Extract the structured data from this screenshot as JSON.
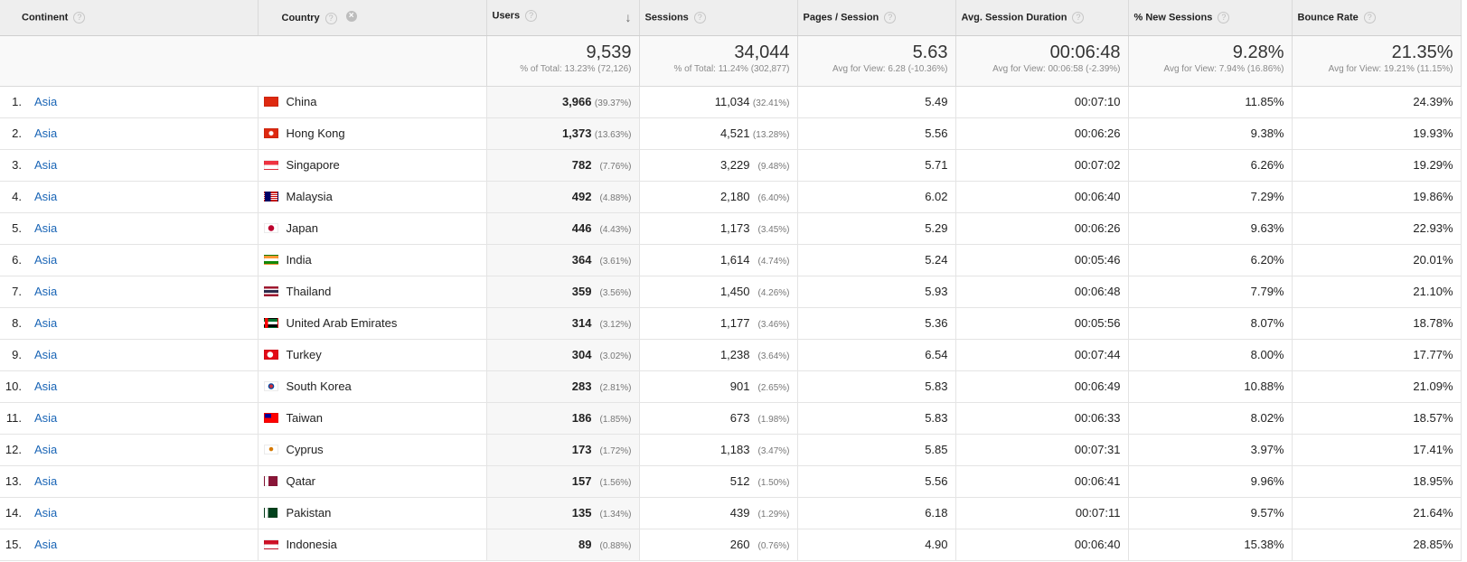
{
  "headers": {
    "continent": "Continent",
    "country": "Country",
    "users": "Users",
    "sessions": "Sessions",
    "pages_per_session": "Pages / Session",
    "avg_duration": "Avg. Session Duration",
    "new_sessions": "% New Sessions",
    "bounce_rate": "Bounce Rate",
    "help_glyph": "?",
    "remove_glyph": "×",
    "sort_glyph": "↓"
  },
  "totals": {
    "users": {
      "value": "9,539",
      "sub": "% of Total: 13.23% (72,126)"
    },
    "sessions": {
      "value": "34,044",
      "sub": "% of Total: 11.24% (302,877)"
    },
    "pages_per_session": {
      "value": "5.63",
      "sub": "Avg for View: 6.28 (-10.36%)"
    },
    "avg_duration": {
      "value": "00:06:48",
      "sub": "Avg for View: 00:06:58 (-2.39%)"
    },
    "new_sessions": {
      "value": "9.28%",
      "sub": "Avg for View: 7.94% (16.86%)"
    },
    "bounce_rate": {
      "value": "21.35%",
      "sub": "Avg for View: 19.21% (11.15%)"
    }
  },
  "rows": [
    {
      "rank": "1.",
      "continent": "Asia",
      "country": "China",
      "flag": "CN",
      "users": "3,966",
      "users_pct": "(39.37%)",
      "sessions": "11,034",
      "sessions_pct": "(32.41%)",
      "pps": "5.49",
      "duration": "00:07:10",
      "new": "11.85%",
      "bounce": "24.39%"
    },
    {
      "rank": "2.",
      "continent": "Asia",
      "country": "Hong Kong",
      "flag": "HK",
      "users": "1,373",
      "users_pct": "(13.63%)",
      "sessions": "4,521",
      "sessions_pct": "(13.28%)",
      "pps": "5.56",
      "duration": "00:06:26",
      "new": "9.38%",
      "bounce": "19.93%"
    },
    {
      "rank": "3.",
      "continent": "Asia",
      "country": "Singapore",
      "flag": "SG",
      "users": "782",
      "users_pct": "(7.76%)",
      "sessions": "3,229",
      "sessions_pct": "(9.48%)",
      "pps": "5.71",
      "duration": "00:07:02",
      "new": "6.26%",
      "bounce": "19.29%"
    },
    {
      "rank": "4.",
      "continent": "Asia",
      "country": "Malaysia",
      "flag": "MY",
      "users": "492",
      "users_pct": "(4.88%)",
      "sessions": "2,180",
      "sessions_pct": "(6.40%)",
      "pps": "6.02",
      "duration": "00:06:40",
      "new": "7.29%",
      "bounce": "19.86%"
    },
    {
      "rank": "5.",
      "continent": "Asia",
      "country": "Japan",
      "flag": "JP",
      "users": "446",
      "users_pct": "(4.43%)",
      "sessions": "1,173",
      "sessions_pct": "(3.45%)",
      "pps": "5.29",
      "duration": "00:06:26",
      "new": "9.63%",
      "bounce": "22.93%"
    },
    {
      "rank": "6.",
      "continent": "Asia",
      "country": "India",
      "flag": "IN",
      "users": "364",
      "users_pct": "(3.61%)",
      "sessions": "1,614",
      "sessions_pct": "(4.74%)",
      "pps": "5.24",
      "duration": "00:05:46",
      "new": "6.20%",
      "bounce": "20.01%"
    },
    {
      "rank": "7.",
      "continent": "Asia",
      "country": "Thailand",
      "flag": "TH",
      "users": "359",
      "users_pct": "(3.56%)",
      "sessions": "1,450",
      "sessions_pct": "(4.26%)",
      "pps": "5.93",
      "duration": "00:06:48",
      "new": "7.79%",
      "bounce": "21.10%"
    },
    {
      "rank": "8.",
      "continent": "Asia",
      "country": "United Arab Emirates",
      "flag": "AE",
      "users": "314",
      "users_pct": "(3.12%)",
      "sessions": "1,177",
      "sessions_pct": "(3.46%)",
      "pps": "5.36",
      "duration": "00:05:56",
      "new": "8.07%",
      "bounce": "18.78%"
    },
    {
      "rank": "9.",
      "continent": "Asia",
      "country": "Turkey",
      "flag": "TR",
      "users": "304",
      "users_pct": "(3.02%)",
      "sessions": "1,238",
      "sessions_pct": "(3.64%)",
      "pps": "6.54",
      "duration": "00:07:44",
      "new": "8.00%",
      "bounce": "17.77%"
    },
    {
      "rank": "10.",
      "continent": "Asia",
      "country": "South Korea",
      "flag": "KR",
      "users": "283",
      "users_pct": "(2.81%)",
      "sessions": "901",
      "sessions_pct": "(2.65%)",
      "pps": "5.83",
      "duration": "00:06:49",
      "new": "10.88%",
      "bounce": "21.09%"
    },
    {
      "rank": "11.",
      "continent": "Asia",
      "country": "Taiwan",
      "flag": "TW",
      "users": "186",
      "users_pct": "(1.85%)",
      "sessions": "673",
      "sessions_pct": "(1.98%)",
      "pps": "5.83",
      "duration": "00:06:33",
      "new": "8.02%",
      "bounce": "18.57%"
    },
    {
      "rank": "12.",
      "continent": "Asia",
      "country": "Cyprus",
      "flag": "CY",
      "users": "173",
      "users_pct": "(1.72%)",
      "sessions": "1,183",
      "sessions_pct": "(3.47%)",
      "pps": "5.85",
      "duration": "00:07:31",
      "new": "3.97%",
      "bounce": "17.41%"
    },
    {
      "rank": "13.",
      "continent": "Asia",
      "country": "Qatar",
      "flag": "QA",
      "users": "157",
      "users_pct": "(1.56%)",
      "sessions": "512",
      "sessions_pct": "(1.50%)",
      "pps": "5.56",
      "duration": "00:06:41",
      "new": "9.96%",
      "bounce": "18.95%"
    },
    {
      "rank": "14.",
      "continent": "Asia",
      "country": "Pakistan",
      "flag": "PK",
      "users": "135",
      "users_pct": "(1.34%)",
      "sessions": "439",
      "sessions_pct": "(1.29%)",
      "pps": "6.18",
      "duration": "00:07:11",
      "new": "9.57%",
      "bounce": "21.64%"
    },
    {
      "rank": "15.",
      "continent": "Asia",
      "country": "Indonesia",
      "flag": "ID",
      "users": "89",
      "users_pct": "(0.88%)",
      "sessions": "260",
      "sessions_pct": "(0.76%)",
      "pps": "4.90",
      "duration": "00:06:40",
      "new": "15.38%",
      "bounce": "28.85%"
    }
  ],
  "colors": {
    "link": "#1a65b6",
    "header_bg": "#eeeeee"
  }
}
